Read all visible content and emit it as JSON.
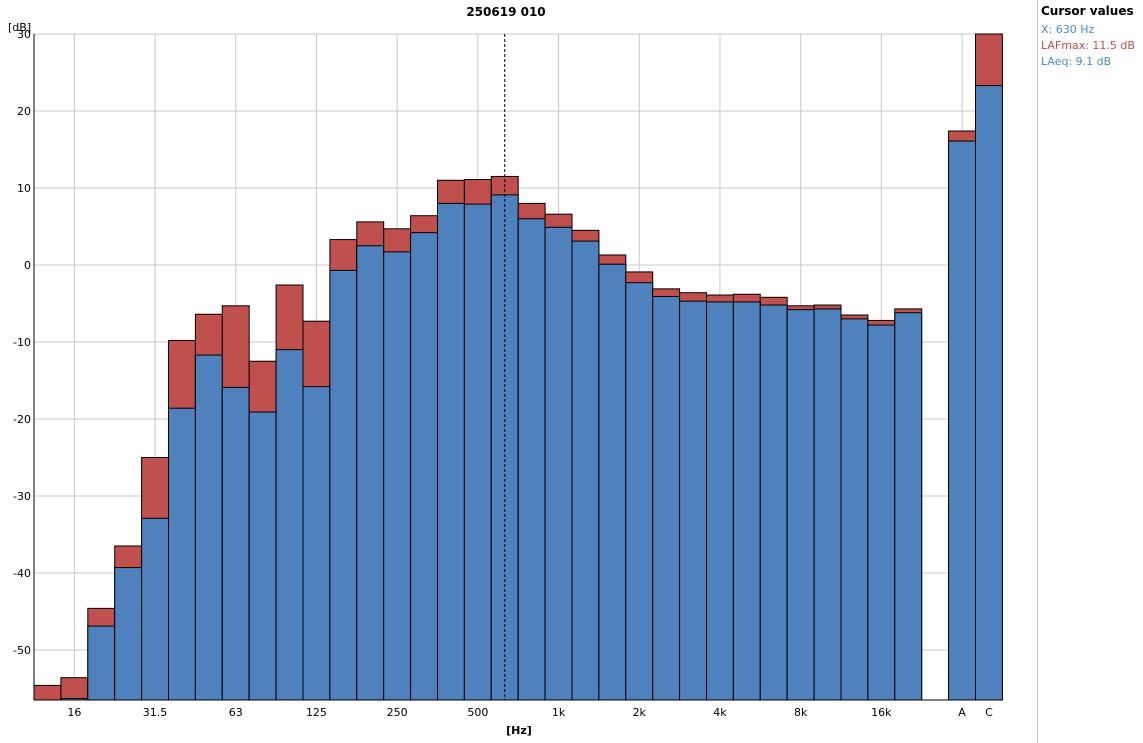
{
  "colors": {
    "laeq": "#4f81bd",
    "lafmax": "#c0504d",
    "grid": "#c8c8c8",
    "cursor_x_text": "#4a8fc7",
    "cursor_lafmax_text": "#c0504d",
    "cursor_laeq_text": "#4a8fc7"
  },
  "cursor_panel": {
    "title": "Cursor values",
    "x": "X: 630 Hz",
    "lafmax": "LAFmax: 11.5 dB",
    "laeq": "LAeq: 9.1 dB"
  },
  "chart_data": {
    "type": "bar",
    "title": "250619 010",
    "xlabel": "[Hz]",
    "ylabel": "[dB]",
    "ylim": [
      -56.5,
      30
    ],
    "yticks": [
      30,
      20,
      10,
      0,
      -10,
      -20,
      -30,
      -40,
      -50
    ],
    "grid": true,
    "legend": "none",
    "categories": [
      "12.5",
      "16",
      "20",
      "25",
      "31.5",
      "40",
      "50",
      "63",
      "80",
      "100",
      "125",
      "160",
      "200",
      "250",
      "315",
      "400",
      "500",
      "630",
      "800",
      "1k",
      "1.25k",
      "1.6k",
      "2k",
      "2.5k",
      "3.15k",
      "4k",
      "5k",
      "6.3k",
      "8k",
      "10k",
      "12.5k",
      "16k",
      "20k",
      "A",
      "C"
    ],
    "xtick_labels": [
      {
        "category": "16",
        "label": "16"
      },
      {
        "category": "31.5",
        "label": "31.5"
      },
      {
        "category": "63",
        "label": "63"
      },
      {
        "category": "125",
        "label": "125"
      },
      {
        "category": "250",
        "label": "250"
      },
      {
        "category": "500",
        "label": "500"
      },
      {
        "category": "1k",
        "label": "1k"
      },
      {
        "category": "2k",
        "label": "2k"
      },
      {
        "category": "4k",
        "label": "4k"
      },
      {
        "category": "8k",
        "label": "8k"
      },
      {
        "category": "16k",
        "label": "16k"
      },
      {
        "category": "A",
        "label": "A"
      },
      {
        "category": "C",
        "label": "C"
      }
    ],
    "cursor_category": "630",
    "series": [
      {
        "name": "LAeq",
        "values": [
          -57.5,
          -56.3,
          -46.9,
          -39.3,
          -32.9,
          -18.6,
          -11.7,
          -15.9,
          -19.1,
          -11.0,
          -15.8,
          -0.7,
          2.5,
          1.7,
          4.2,
          8.0,
          7.9,
          9.1,
          6.0,
          4.9,
          3.1,
          0.1,
          -2.3,
          -4.1,
          -4.7,
          -4.8,
          -4.8,
          -5.2,
          -5.8,
          -5.7,
          -7.0,
          -7.8,
          -6.2,
          16.1,
          23.3
        ]
      },
      {
        "name": "LAFmax",
        "values": [
          -54.6,
          -53.6,
          -44.6,
          -36.5,
          -25.0,
          -9.8,
          -6.4,
          -5.3,
          -12.5,
          -2.6,
          -7.3,
          3.3,
          5.6,
          4.7,
          6.4,
          11.0,
          11.1,
          11.5,
          8.0,
          6.6,
          4.5,
          1.3,
          -0.9,
          -3.1,
          -3.6,
          -3.9,
          -3.8,
          -4.2,
          -5.3,
          -5.2,
          -6.5,
          -7.2,
          -5.7,
          17.4,
          30.0
        ]
      }
    ]
  }
}
